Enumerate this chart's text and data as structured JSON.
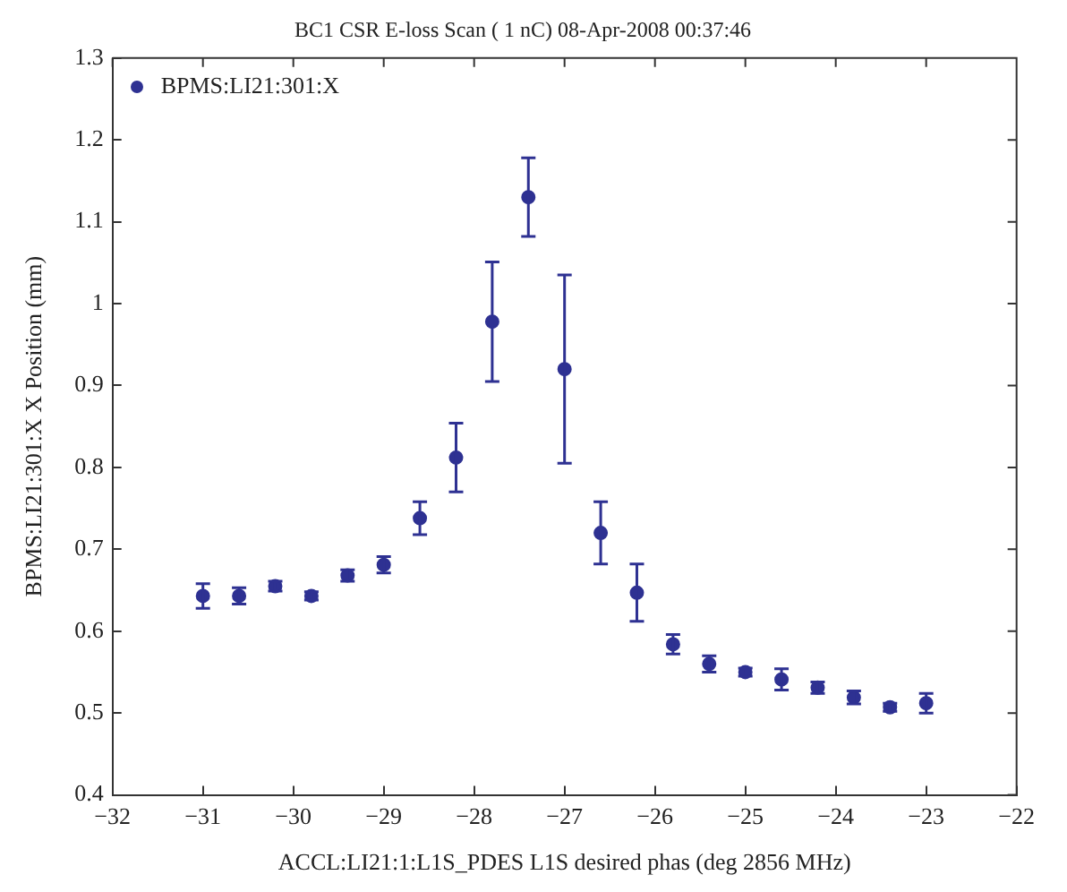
{
  "chart_data": {
    "type": "scatter",
    "title": "BC1 CSR E-loss Scan ( 1 nC) 08-Apr-2008 00:37:46",
    "xlabel": "ACCL:LI21:1:L1S_PDES L1S desired phas (deg 2856 MHz)",
    "ylabel": "BPMS:LI21:301:X X Position (mm)",
    "x": [
      -31,
      -30.6,
      -30.2,
      -29.8,
      -29.4,
      -29,
      -28.6,
      -28.2,
      -27.8,
      -27.4,
      -27,
      -26.6,
      -26.2,
      -25.8,
      -25.4,
      -25,
      -24.6,
      -24.2,
      -23.8,
      -23.4,
      -23
    ],
    "series": [
      {
        "name": "BPMS:LI21:301:X",
        "color": "#2e3192",
        "values": [
          0.643,
          0.643,
          0.655,
          0.643,
          0.668,
          0.681,
          0.738,
          0.812,
          0.978,
          1.13,
          0.92,
          0.72,
          0.647,
          0.584,
          0.56,
          0.55,
          0.541,
          0.531,
          0.519,
          0.507,
          0.512
        ],
        "errors": [
          0.015,
          0.01,
          0.006,
          0.005,
          0.007,
          0.01,
          0.02,
          0.042,
          0.073,
          0.048,
          0.115,
          0.038,
          0.035,
          0.012,
          0.01,
          0.005,
          0.013,
          0.007,
          0.008,
          0.005,
          0.012
        ]
      }
    ],
    "xlim": [
      -32,
      -22
    ],
    "xticks": [
      -32,
      -31,
      -30,
      -29,
      -28,
      -27,
      -26,
      -25,
      -24,
      -23,
      -22
    ],
    "ylim": [
      0.4,
      1.3
    ],
    "yticks": [
      0.4,
      0.5,
      0.6,
      0.7,
      0.8,
      0.9,
      1,
      1.1,
      1.2,
      1.3
    ],
    "legend": "top left",
    "marker": "circle",
    "grid": false
  }
}
